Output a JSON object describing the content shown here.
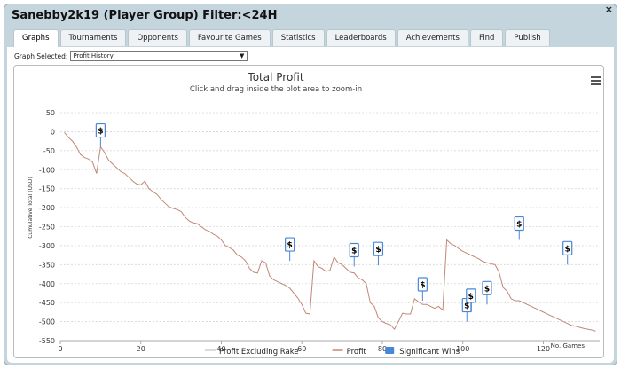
{
  "window": {
    "title": "Sanebby2k19 (Player Group) Filter:<24H",
    "close": "×"
  },
  "tabs": [
    {
      "label": "Graphs",
      "active": true
    },
    {
      "label": "Tournaments"
    },
    {
      "label": "Opponents"
    },
    {
      "label": "Favourite Games"
    },
    {
      "label": "Statistics"
    },
    {
      "label": "Leaderboards"
    },
    {
      "label": "Achievements"
    },
    {
      "label": "Find"
    },
    {
      "label": "Publish"
    }
  ],
  "graph_select": {
    "label": "Graph Selected:",
    "value": "Profit History",
    "arrow": "▼"
  },
  "chart_data": {
    "type": "line",
    "title": "Total Profit",
    "subtitle": "Click and drag inside the plot area to zoom-in",
    "ylabel": "Cumulative Total (USD)",
    "xlabel": "No. Games",
    "xlim": [
      0,
      134
    ],
    "ylim": [
      -550,
      50
    ],
    "xticks": [
      0,
      20,
      40,
      60,
      80,
      100,
      120
    ],
    "yticks": [
      50,
      0,
      -50,
      -100,
      -150,
      -200,
      -250,
      -300,
      -350,
      -400,
      -450,
      -500,
      -550
    ],
    "grid": true,
    "legend_position": "bottom",
    "series": [
      {
        "name": "Profit Excluding Rake",
        "color": "#cfcfcf",
        "x": [],
        "y": []
      },
      {
        "name": "Profit",
        "color": "#c08878",
        "x": [
          1,
          2,
          3,
          4,
          5,
          6,
          7,
          8,
          9,
          10,
          11,
          12,
          13,
          14,
          15,
          16,
          17,
          18,
          19,
          20,
          21,
          22,
          23,
          24,
          25,
          26,
          27,
          28,
          29,
          30,
          31,
          32,
          33,
          34,
          35,
          36,
          37,
          38,
          39,
          40,
          41,
          42,
          43,
          44,
          45,
          46,
          47,
          48,
          49,
          50,
          51,
          52,
          53,
          54,
          55,
          56,
          57,
          58,
          59,
          60,
          61,
          62,
          63,
          64,
          65,
          66,
          67,
          68,
          69,
          70,
          71,
          72,
          73,
          74,
          75,
          76,
          77,
          78,
          79,
          80,
          81,
          82,
          83,
          84,
          85,
          86,
          87,
          88,
          89,
          90,
          91,
          92,
          93,
          94,
          95,
          96,
          97,
          98,
          99,
          100,
          101,
          102,
          103,
          104,
          105,
          106,
          107,
          108,
          109,
          110,
          111,
          112,
          113,
          114,
          115,
          116,
          117,
          118,
          119,
          120,
          121,
          122,
          123,
          124,
          125,
          126,
          127,
          128,
          129,
          130,
          131,
          132,
          133
        ],
        "y": [
          -2,
          -15,
          -25,
          -40,
          -60,
          -68,
          -72,
          -80,
          -110,
          -40,
          -55,
          -75,
          -85,
          -95,
          -105,
          -110,
          -120,
          -130,
          -138,
          -140,
          -130,
          -150,
          -158,
          -165,
          -178,
          -188,
          -198,
          -202,
          -205,
          -210,
          -225,
          -235,
          -240,
          -242,
          -250,
          -258,
          -262,
          -270,
          -275,
          -285,
          -300,
          -305,
          -312,
          -325,
          -330,
          -340,
          -360,
          -370,
          -372,
          -340,
          -345,
          -380,
          -390,
          -395,
          -400,
          -405,
          -412,
          -425,
          -438,
          -455,
          -478,
          -480,
          -340,
          -355,
          -360,
          -368,
          -365,
          -330,
          -345,
          -350,
          -360,
          -370,
          -372,
          -385,
          -390,
          -400,
          -450,
          -460,
          -490,
          -500,
          -505,
          -508,
          -520,
          -500,
          -478,
          -480,
          -480,
          -440,
          -448,
          -455,
          -455,
          -460,
          -465,
          -460,
          -470,
          -285,
          -295,
          -300,
          -308,
          -315,
          -320,
          -325,
          -330,
          -335,
          -342,
          -345,
          -348,
          -350,
          -370,
          -410,
          -420,
          -440,
          -445,
          -445,
          -450,
          -455,
          -460,
          -465,
          -470,
          -475,
          -480,
          -485,
          -490,
          -495,
          -500,
          -505,
          -510,
          -512,
          -515,
          -518,
          -520,
          -522,
          -525
        ]
      },
      {
        "name": "Significant Wins",
        "color": "#4a86d8",
        "marker_label": "$",
        "points": [
          {
            "x": 10,
            "y": -40
          },
          {
            "x": 57,
            "y": -340
          },
          {
            "x": 73,
            "y": -355
          },
          {
            "x": 79,
            "y": -352
          },
          {
            "x": 90,
            "y": -445
          },
          {
            "x": 101,
            "y": -500
          },
          {
            "x": 102,
            "y": -475
          },
          {
            "x": 106,
            "y": -455
          },
          {
            "x": 114,
            "y": -285
          },
          {
            "x": 126,
            "y": -350
          }
        ]
      }
    ]
  }
}
